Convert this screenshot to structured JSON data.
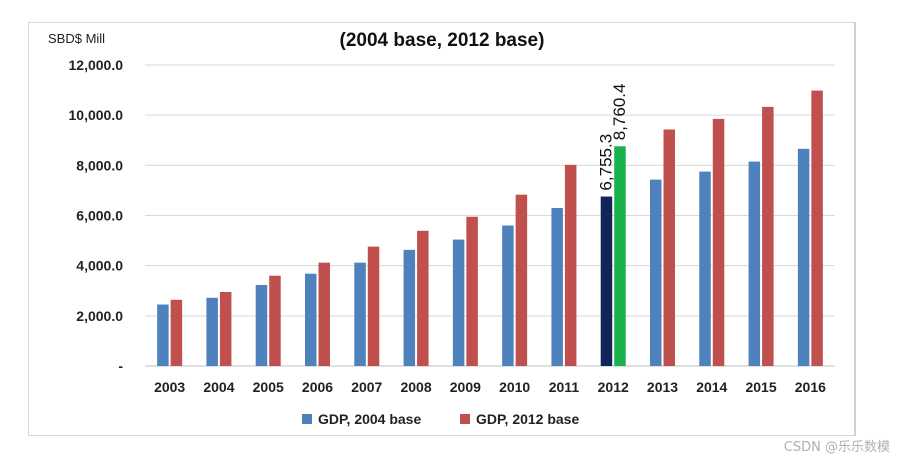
{
  "chart_data": {
    "type": "bar",
    "title": "(2004 base, 2012 base)",
    "ylabel": "SBD$ Mill",
    "xlabel": "",
    "ylim": [
      0,
      12000
    ],
    "yticks": [
      0,
      2000,
      4000,
      6000,
      8000,
      10000,
      12000
    ],
    "ytick_labels": [
      "-",
      "2,000.0",
      "4,000.0",
      "6,000.0",
      "8,000.0",
      "10,000.0",
      "12,000.0"
    ],
    "categories": [
      "2003",
      "2004",
      "2005",
      "2006",
      "2007",
      "2008",
      "2009",
      "2010",
      "2011",
      "2012",
      "2013",
      "2014",
      "2015",
      "2016"
    ],
    "series": [
      {
        "name": "GDP, 2004 base",
        "color": "#4f81bd",
        "values": [
          2450,
          2720,
          3230,
          3680,
          4120,
          4630,
          5040,
          5600,
          6300,
          6755.3,
          7430,
          7750,
          8150,
          8660
        ]
      },
      {
        "name": "GDP, 2012 base",
        "color": "#c0504d",
        "values": [
          2640,
          2950,
          3600,
          4120,
          4760,
          5390,
          5950,
          6830,
          8020,
          8760.4,
          9430,
          9850,
          10330,
          10980
        ]
      }
    ],
    "highlight": {
      "category": "2012",
      "colors": [
        "#10245a",
        "#19b24b"
      ]
    },
    "data_labels": [
      {
        "category": "2012",
        "series": 0,
        "text": "6,755.3"
      },
      {
        "category": "2012",
        "series": 1,
        "text": "8,760.4"
      }
    ],
    "legend": "bottom-center",
    "grid": true
  },
  "watermark": "CSDN @乐乐数模"
}
